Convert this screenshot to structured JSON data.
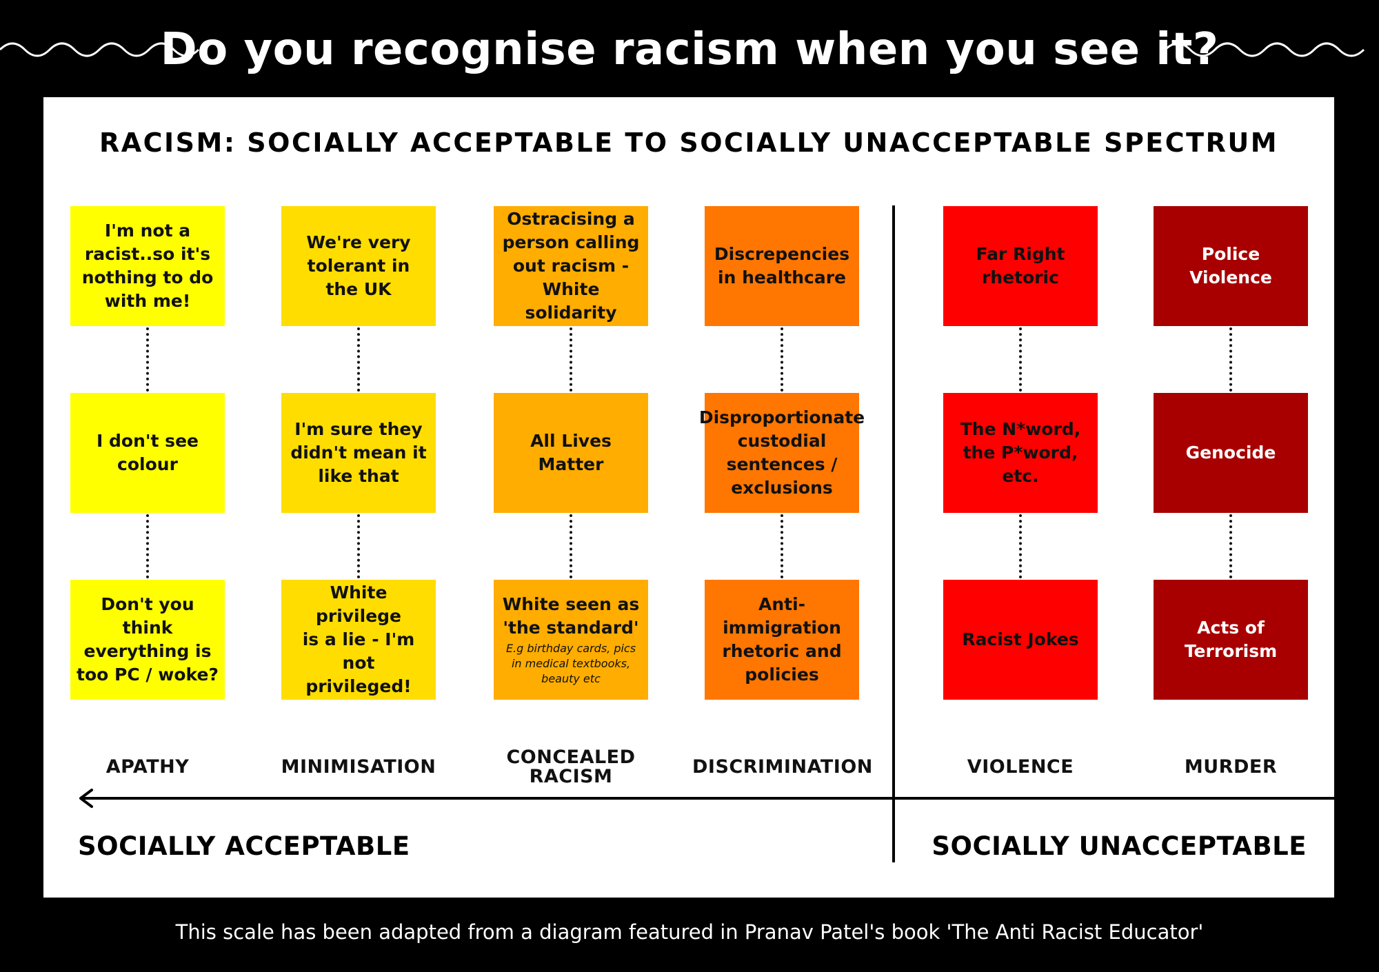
{
  "title": "Do you recognise racism when you see it?",
  "spectrum_title": "RACISM: SOCIALLY ACCEPTABLE TO SOCIALLY UNACCEPTABLE SPECTRUM",
  "colors": {
    "background": "#000000",
    "panel": "#ffffff",
    "apathy": "#ffff00",
    "minimisation": "#ffdd00",
    "concealed": "#ffad00",
    "discrimination": "#ff7600",
    "violence": "#ff0000",
    "murder": "#a80000"
  },
  "columns": [
    {
      "category": "APATHY",
      "items": [
        {
          "text": "I'm not a\nracist..so it's\nnothing to do\nwith me!"
        },
        {
          "text": "I don't see\ncolour"
        },
        {
          "text": "Don't you\nthink\neverything is\ntoo PC / woke?"
        }
      ]
    },
    {
      "category": "MINIMISATION",
      "items": [
        {
          "text": "We're very\ntolerant in\nthe UK"
        },
        {
          "text": "I'm sure they\ndidn't mean it\nlike that"
        },
        {
          "text": "White privilege\nis a lie  - I'm\nnot privileged!"
        }
      ]
    },
    {
      "category": "CONCEALED\nRACISM",
      "items": [
        {
          "text": "Ostracising a\nperson calling\nout racism -\nWhite solidarity"
        },
        {
          "text": "All Lives\nMatter"
        },
        {
          "text": "White seen as\n'the standard'",
          "note": "E.g birthday cards, pics\nin medical textbooks,\nbeauty etc"
        }
      ]
    },
    {
      "category": "DISCRIMINATION",
      "items": [
        {
          "text": "Discrepencies\nin healthcare"
        },
        {
          "text": "Disproportionate\ncustodial\nsentences /\nexclusions"
        },
        {
          "text": "Anti-\nimmigration\nrhetoric and\npolicies"
        }
      ]
    },
    {
      "category": "VIOLENCE",
      "items": [
        {
          "text": "Far Right\nrhetoric"
        },
        {
          "text": "The N*word,\nthe P*word,\netc."
        },
        {
          "text": "Racist Jokes"
        }
      ]
    },
    {
      "category": "MURDER",
      "items": [
        {
          "text": "Police\nViolence"
        },
        {
          "text": "Genocide"
        },
        {
          "text": "Acts of\nTerrorism"
        }
      ]
    }
  ],
  "axis": {
    "left_label": "SOCIALLY ACCEPTABLE",
    "right_label": "SOCIALLY UNACCEPTABLE"
  },
  "footer": "This scale has been adapted from a diagram featured in Pranav Patel's book 'The Anti Racist Educator'"
}
